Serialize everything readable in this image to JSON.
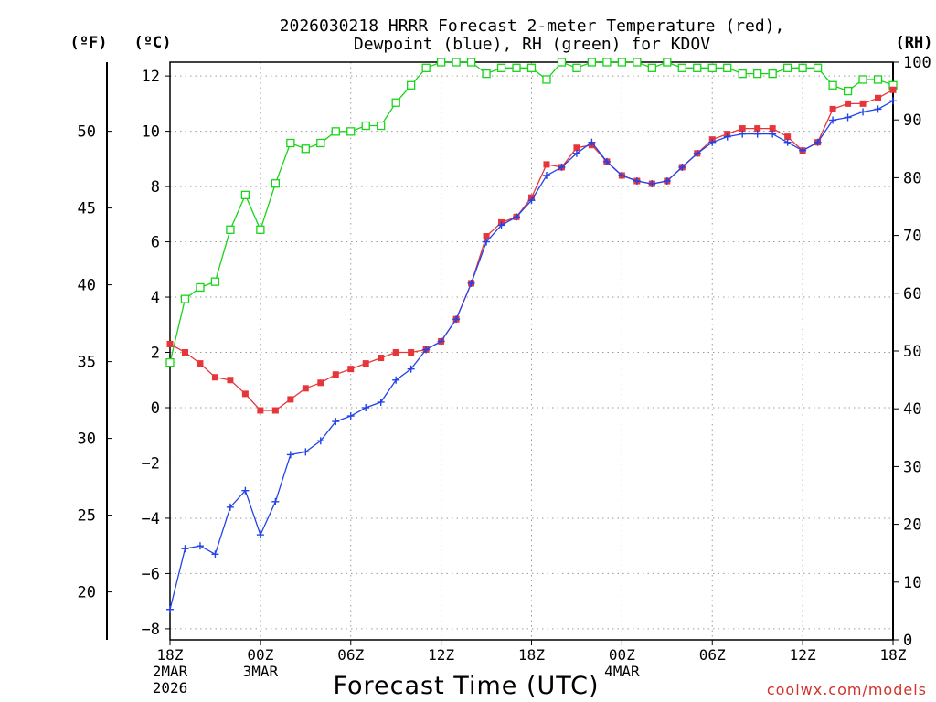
{
  "colors": {
    "temp": "#e8353a",
    "temp_line": "#e8353a",
    "dewpoint": "#2343e8",
    "rh": "#18d418",
    "credit": "#d0342c"
  },
  "units": {
    "fahrenheit": "(ºF)",
    "celsius": "(ºC)",
    "rh": "(RH)"
  },
  "credit": "coolwx.com/models",
  "chart_data": {
    "type": "line",
    "title": "2026030218 HRRR Forecast 2-meter Temperature (red),",
    "subtitle": "Dewpoint (blue), RH (green) for KDOV",
    "xlabel": "Forecast Time (UTC)",
    "ylabel_left": "(ºC)",
    "ylabel_far_left": "(ºF)",
    "ylabel_right": "(RH)",
    "x_hours": [
      0,
      1,
      2,
      3,
      4,
      5,
      6,
      7,
      8,
      9,
      10,
      11,
      12,
      13,
      14,
      15,
      16,
      17,
      18,
      19,
      20,
      21,
      22,
      23,
      24,
      25,
      26,
      27,
      28,
      29,
      30,
      31,
      32,
      33,
      34,
      35,
      36,
      37,
      38,
      39,
      40,
      41,
      42,
      43,
      44,
      45,
      46,
      47,
      48
    ],
    "xlim": [
      0,
      48
    ],
    "ylim_celsius": [
      -8.4,
      12.5
    ],
    "ylim_rh": [
      0,
      100
    ],
    "x_ticks": [
      {
        "hour": 0,
        "lines": [
          "18Z",
          "2MAR",
          "2026"
        ]
      },
      {
        "hour": 6,
        "lines": [
          "00Z",
          "3MAR"
        ]
      },
      {
        "hour": 12,
        "lines": [
          "06Z"
        ]
      },
      {
        "hour": 18,
        "lines": [
          "12Z"
        ]
      },
      {
        "hour": 24,
        "lines": [
          "18Z"
        ]
      },
      {
        "hour": 30,
        "lines": [
          "00Z",
          "4MAR"
        ]
      },
      {
        "hour": 36,
        "lines": [
          "06Z"
        ]
      },
      {
        "hour": 42,
        "lines": [
          "12Z"
        ]
      },
      {
        "hour": 48,
        "lines": [
          "18Z"
        ]
      }
    ],
    "celsius_ticks": [
      12,
      10,
      8,
      6,
      4,
      2,
      0,
      -2,
      -4,
      -6,
      -8
    ],
    "fahrenheit_ticks": [
      50,
      45,
      40,
      35,
      30,
      25,
      20
    ],
    "rh_ticks": [
      100,
      90,
      80,
      70,
      60,
      50,
      40,
      30,
      20,
      10,
      0
    ],
    "series": [
      {
        "name": "Temperature",
        "unit": "C",
        "values": [
          2.3,
          2.0,
          1.6,
          1.1,
          1.0,
          0.5,
          -0.1,
          -0.1,
          0.3,
          0.7,
          0.9,
          1.2,
          1.4,
          1.6,
          1.8,
          2.0,
          2.0,
          2.1,
          2.4,
          3.2,
          4.5,
          6.2,
          6.7,
          6.9,
          7.6,
          8.8,
          8.7,
          9.4,
          9.5,
          8.9,
          8.4,
          8.2,
          8.1,
          8.2,
          8.7,
          9.2,
          9.7,
          9.9,
          10.1,
          10.1,
          10.1,
          9.8,
          9.3,
          9.6,
          10.8,
          11.0,
          11.0,
          11.2,
          11.5
        ]
      },
      {
        "name": "Dewpoint",
        "unit": "C",
        "values": [
          -7.3,
          -5.1,
          -5.0,
          -5.3,
          -3.6,
          -3.0,
          -4.6,
          -3.4,
          -1.7,
          -1.6,
          -1.2,
          -0.5,
          -0.3,
          0.0,
          0.2,
          1.0,
          1.4,
          2.1,
          2.4,
          3.2,
          4.5,
          6.0,
          6.6,
          6.9,
          7.5,
          8.4,
          8.7,
          9.2,
          9.6,
          8.9,
          8.4,
          8.2,
          8.1,
          8.2,
          8.7,
          9.2,
          9.6,
          9.8,
          9.9,
          9.9,
          9.9,
          9.6,
          9.3,
          9.6,
          10.4,
          10.5,
          10.7,
          10.8,
          11.1
        ]
      },
      {
        "name": "Relative Humidity",
        "unit": "%",
        "values": [
          48,
          59,
          61,
          62,
          71,
          77,
          71,
          79,
          86,
          85,
          86,
          88,
          88,
          89,
          89,
          93,
          96,
          99,
          100,
          100,
          100,
          98,
          99,
          99,
          99,
          97,
          100,
          99,
          100,
          100,
          100,
          100,
          99,
          100,
          99,
          99,
          99,
          99,
          98,
          98,
          98,
          99,
          99,
          99,
          96,
          95,
          97,
          97,
          96
        ]
      }
    ]
  }
}
